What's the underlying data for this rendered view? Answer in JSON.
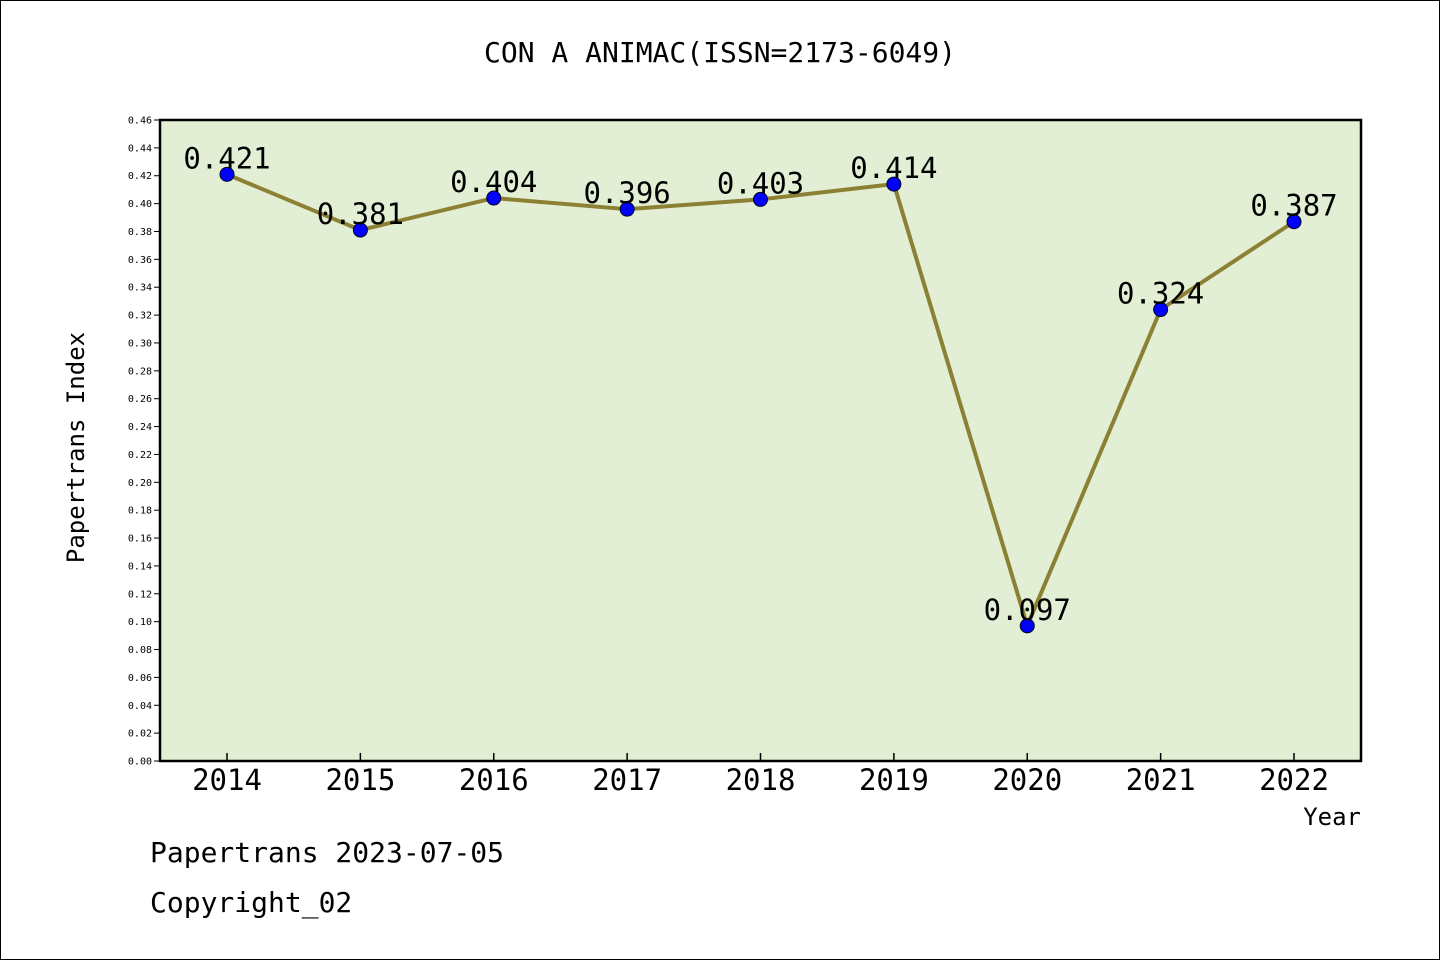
{
  "chart_data": {
    "type": "line",
    "title": "CON A ANIMAC(ISSN=2173-6049)",
    "xlabel": "Year",
    "ylabel": "Papertrans Index",
    "categories": [
      "2014",
      "2015",
      "2016",
      "2017",
      "2018",
      "2019",
      "2020",
      "2021",
      "2022"
    ],
    "series": [
      {
        "values": [
          0.421,
          0.381,
          0.404,
          0.396,
          0.403,
          0.414,
          0.097,
          0.324,
          0.387
        ],
        "labels": [
          "0.421",
          "0.381",
          "0.404",
          "0.396",
          "0.403",
          "0.414",
          "0.097",
          "0.324",
          "0.387"
        ]
      }
    ],
    "ylim": [
      0,
      0.46
    ],
    "yticks": [
      "0.00",
      "0.02",
      "0.04",
      "0.06",
      "0.08",
      "0.10",
      "0.12",
      "0.14",
      "0.16",
      "0.18",
      "0.20",
      "0.22",
      "0.24",
      "0.26",
      "0.28",
      "0.30",
      "0.32",
      "0.34",
      "0.36",
      "0.38",
      "0.40",
      "0.42",
      "0.44",
      "0.46"
    ],
    "grid": false,
    "legend": "none",
    "colors": {
      "plot_background": "#e2efd4",
      "line": "#8b8033",
      "marker": "#0000ff",
      "axis": "#000000"
    }
  },
  "footer": {
    "line1": "Papertrans 2023-07-05",
    "line2": "Copyright_02"
  }
}
